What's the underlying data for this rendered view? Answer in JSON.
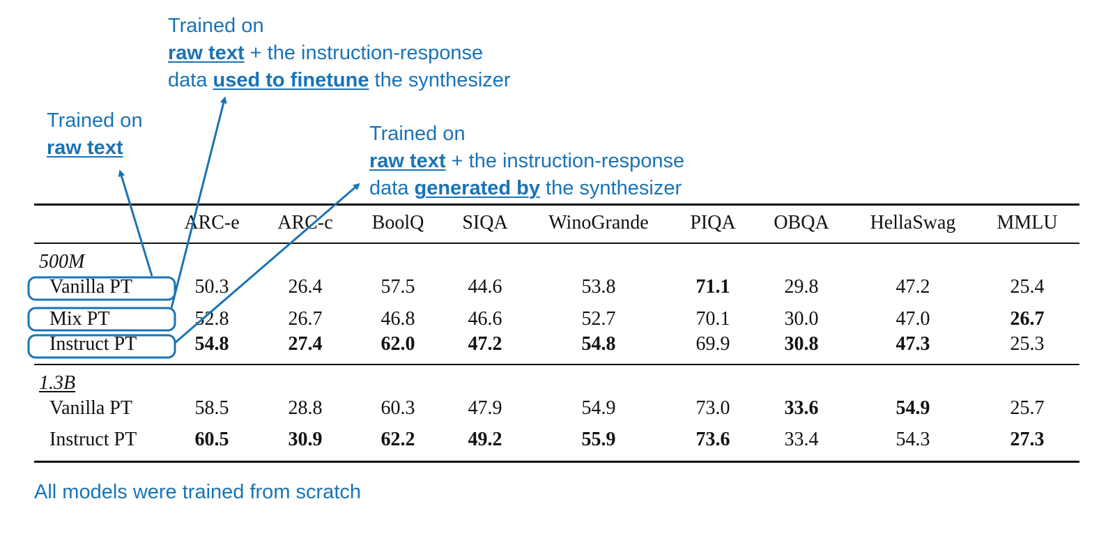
{
  "annotations": {
    "mix": {
      "line1": "Trained on",
      "bold1": "raw text",
      "rest1": " + the instruction-response",
      "line3a": "data ",
      "bold2": "used to finetune",
      "line3b": " the synthesizer"
    },
    "vanilla": {
      "line1": "Trained on",
      "bold1": "raw text"
    },
    "instruct": {
      "line1": "Trained on",
      "bold1": "raw text",
      "rest1": " + the instruction-response",
      "line3a": "data ",
      "bold2": "generated by",
      "line3b": " the synthesizer"
    }
  },
  "columns": [
    "ARC-e",
    "ARC-c",
    "BoolQ",
    "SIQA",
    "WinoGrande",
    "PIQA",
    "OBQA",
    "HellaSwag",
    "MMLU"
  ],
  "groups": [
    {
      "name": "500M",
      "rows": [
        {
          "label": "Vanilla PT",
          "values": [
            "50.3",
            "26.4",
            "57.5",
            "44.6",
            "53.8",
            "71.1",
            "29.8",
            "47.2",
            "25.4"
          ],
          "bold": [
            false,
            false,
            false,
            false,
            false,
            true,
            false,
            false,
            false
          ]
        },
        {
          "label": "Mix PT",
          "values": [
            "52.8",
            "26.7",
            "46.8",
            "46.6",
            "52.7",
            "70.1",
            "30.0",
            "47.0",
            "26.7"
          ],
          "bold": [
            false,
            false,
            false,
            false,
            false,
            false,
            false,
            false,
            true
          ]
        },
        {
          "label": "Instruct PT",
          "values": [
            "54.8",
            "27.4",
            "62.0",
            "47.2",
            "54.8",
            "69.9",
            "30.8",
            "47.3",
            "25.3"
          ],
          "bold": [
            true,
            true,
            true,
            true,
            true,
            false,
            true,
            true,
            false
          ]
        }
      ]
    },
    {
      "name": "1.3B",
      "rows": [
        {
          "label": "Vanilla PT",
          "values": [
            "58.5",
            "28.8",
            "60.3",
            "47.9",
            "54.9",
            "73.0",
            "33.6",
            "54.9",
            "25.7"
          ],
          "bold": [
            false,
            false,
            false,
            false,
            false,
            false,
            true,
            true,
            false
          ]
        },
        {
          "label": "Instruct PT",
          "values": [
            "60.5",
            "30.9",
            "62.2",
            "49.2",
            "55.9",
            "73.6",
            "33.4",
            "54.3",
            "27.3"
          ],
          "bold": [
            true,
            true,
            true,
            true,
            true,
            true,
            false,
            false,
            true
          ]
        }
      ]
    }
  ],
  "footer": "All models were trained from scratch",
  "colors": {
    "annotation": "#1a73b5",
    "text": "#111111"
  }
}
